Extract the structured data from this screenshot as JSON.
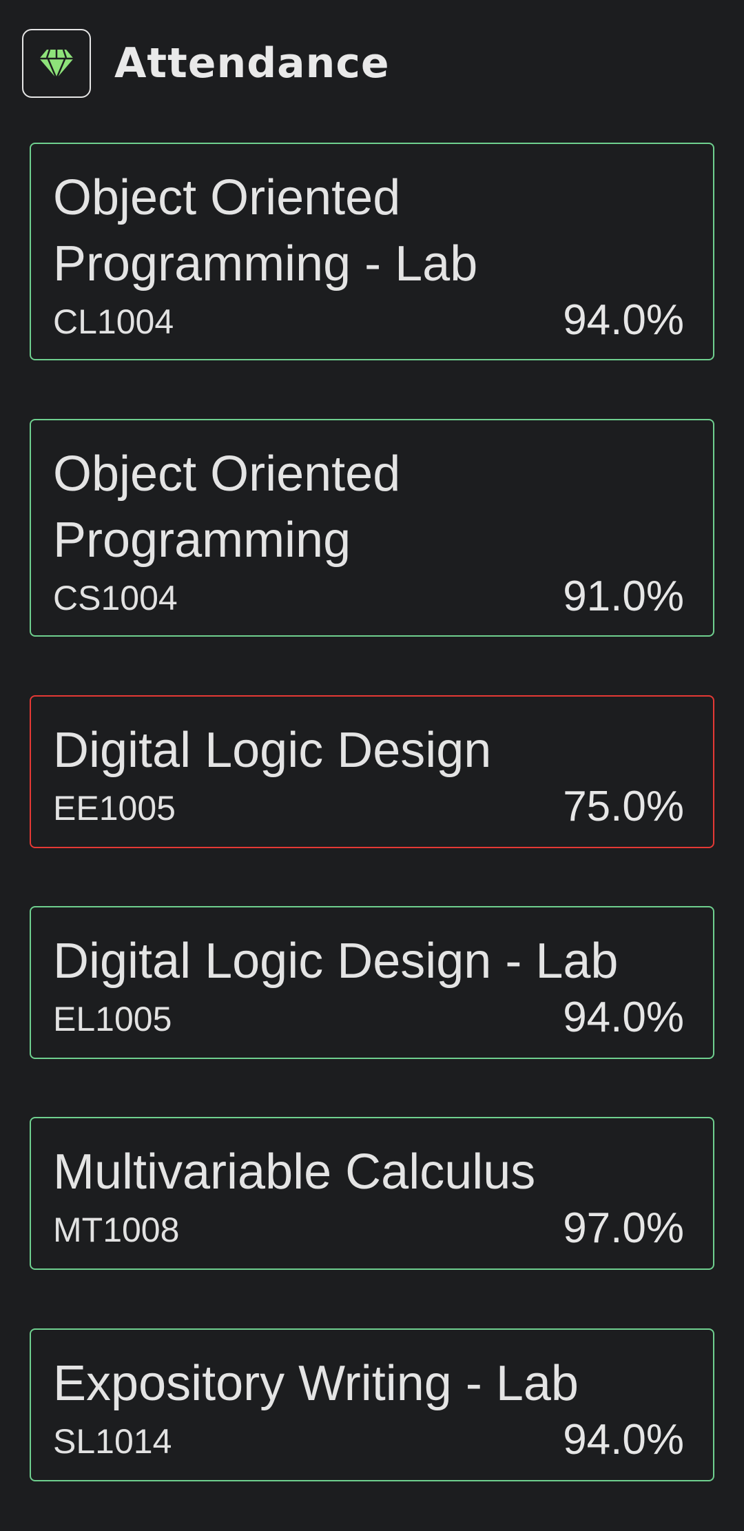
{
  "header": {
    "title": "Attendance",
    "logo_icon": "diamond-icon",
    "logo_color": "#8ee27a"
  },
  "courses": [
    {
      "name": "Object Oriented Programming - Lab",
      "code": "CL1004",
      "percent": "94.0%",
      "status": "ok"
    },
    {
      "name": "Object Oriented Programming",
      "code": "CS1004",
      "percent": "91.0%",
      "status": "ok"
    },
    {
      "name": "Digital Logic Design",
      "code": "EE1005",
      "percent": "75.0%",
      "status": "low"
    },
    {
      "name": "Digital Logic Design - Lab",
      "code": "EL1005",
      "percent": "94.0%",
      "status": "ok"
    },
    {
      "name": "Multivariable Calculus",
      "code": "MT1008",
      "percent": "97.0%",
      "status": "ok"
    },
    {
      "name": "Expository Writing - Lab",
      "code": "SL1014",
      "percent": "94.0%",
      "status": "ok"
    }
  ],
  "colors": {
    "ok_border": "#6fd08f",
    "low_border": "#e53935",
    "background": "#1c1d1f"
  }
}
